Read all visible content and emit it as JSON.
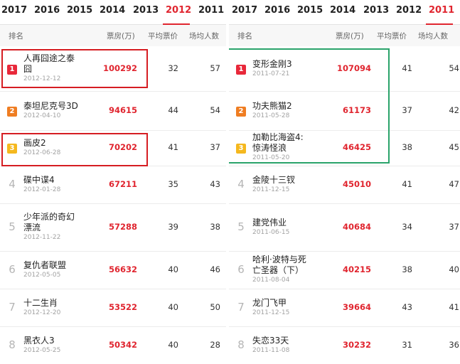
{
  "left": {
    "tabs": [
      "2017",
      "2016",
      "2015",
      "2014",
      "2013",
      "2012",
      "2011"
    ],
    "active_tab": "2012",
    "headers": {
      "rank": "排名",
      "box": "票房(万)",
      "price": "平均票价",
      "avg": "场均人数"
    },
    "rows": [
      {
        "rank": "1",
        "name_lines": [
          "人再囧途之泰",
          "囧"
        ],
        "date": "2012-12-12",
        "box": "100292",
        "price": "32",
        "avg": "57"
      },
      {
        "rank": "2",
        "name_lines": [
          "泰坦尼克号3D"
        ],
        "date": "2012-04-10",
        "box": "94615",
        "price": "44",
        "avg": "54"
      },
      {
        "rank": "3",
        "name_lines": [
          "画皮2"
        ],
        "date": "2012-06-28",
        "box": "70202",
        "price": "41",
        "avg": "37"
      },
      {
        "rank": "4",
        "name_lines": [
          "碟中谍4"
        ],
        "date": "2012-01-28",
        "box": "67211",
        "price": "35",
        "avg": "43"
      },
      {
        "rank": "5",
        "name_lines": [
          "少年派的奇幻",
          "漂流"
        ],
        "date": "2012-11-22",
        "box": "57288",
        "price": "39",
        "avg": "38"
      },
      {
        "rank": "6",
        "name_lines": [
          "复仇者联盟"
        ],
        "date": "2012-05-05",
        "box": "56632",
        "price": "40",
        "avg": "46"
      },
      {
        "rank": "7",
        "name_lines": [
          "十二生肖"
        ],
        "date": "2012-12-20",
        "box": "53522",
        "price": "40",
        "avg": "50"
      },
      {
        "rank": "8",
        "name_lines": [
          "黑衣人3"
        ],
        "date": "2012-05-25",
        "box": "50342",
        "price": "40",
        "avg": "28"
      }
    ]
  },
  "right": {
    "tabs": [
      "2017",
      "2016",
      "2015",
      "2014",
      "2013",
      "2012",
      "2011"
    ],
    "active_tab": "2011",
    "headers": {
      "rank": "排名",
      "box": "票房(万)",
      "price": "平均票价",
      "avg": "场均人数"
    },
    "rows": [
      {
        "rank": "1",
        "name_lines": [
          "变形金刚3"
        ],
        "date": "2011-07-21",
        "box": "107094",
        "price": "41",
        "avg": "54"
      },
      {
        "rank": "2",
        "name_lines": [
          "功夫熊猫2"
        ],
        "date": "2011-05-28",
        "box": "61173",
        "price": "37",
        "avg": "42"
      },
      {
        "rank": "3",
        "name_lines": [
          "加勒比海盗4:",
          "惊涛怪浪"
        ],
        "date": "2011-05-20",
        "box": "46425",
        "price": "38",
        "avg": "45"
      },
      {
        "rank": "4",
        "name_lines": [
          "金陵十三钗"
        ],
        "date": "2011-12-15",
        "box": "45010",
        "price": "41",
        "avg": "47"
      },
      {
        "rank": "5",
        "name_lines": [
          "建党伟业"
        ],
        "date": "2011-06-15",
        "box": "40684",
        "price": "34",
        "avg": "37"
      },
      {
        "rank": "6",
        "name_lines": [
          "哈利·波特与死",
          "亡圣器（下）"
        ],
        "date": "2011-08-04",
        "box": "40215",
        "price": "38",
        "avg": "40"
      },
      {
        "rank": "7",
        "name_lines": [
          "龙门飞甲"
        ],
        "date": "2011-12-15",
        "box": "39664",
        "price": "43",
        "avg": "41"
      },
      {
        "rank": "8",
        "name_lines": [
          "失恋33天"
        ],
        "date": "2011-11-08",
        "box": "30232",
        "price": "31",
        "avg": "36"
      }
    ]
  },
  "colors": {
    "accent": "#e0252f",
    "rank1": "#e8283a",
    "rank2": "#ef7d22",
    "rank3": "#f5b81e",
    "highlight_red": "#d61d22",
    "highlight_green": "#2aa36a"
  }
}
